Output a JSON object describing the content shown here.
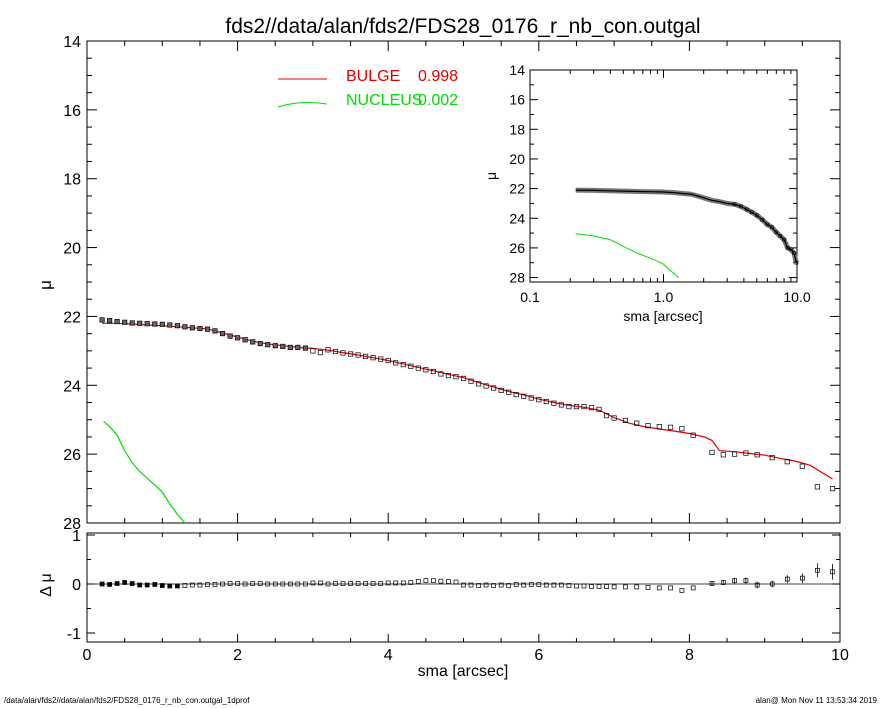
{
  "title": "fds2//data/alan/fds2/FDS28_0176_r_nb_con.outgal",
  "footer": {
    "left": "/data/alan/fds2//data/alan/fds2/FDS28_0176_r_nb_con.outgal_1dprof",
    "right": "alan@  Mon Nov 11 13:53:34 2019"
  },
  "colors": {
    "bulge": "#e00000",
    "nucleus": "#00dd00",
    "data": "#000000",
    "background": "#ffffff"
  },
  "chart_data": [
    {
      "type": "line",
      "panel": "main",
      "title": "fds2//data/alan/fds2/FDS28_0176_r_nb_con.outgal",
      "xlabel": "",
      "ylabel": "μ",
      "xlim": [
        0,
        10
      ],
      "ylim": [
        28,
        14
      ],
      "y_reversed": true,
      "x_ticks": [
        0,
        2,
        4,
        6,
        8,
        10
      ],
      "y_ticks": [
        "14",
        "16",
        "18",
        "20",
        "22",
        "24",
        "26",
        "28"
      ],
      "legend_position": "top-center",
      "legend": [
        {
          "label": "BULGE",
          "value": "0.998",
          "color": "#e00000"
        },
        {
          "label": "NUCLEUS",
          "value": "0.002",
          "color": "#00dd00"
        }
      ],
      "series": [
        {
          "name": "data",
          "style": "squares",
          "x": [
            0.2,
            0.3,
            0.4,
            0.5,
            0.6,
            0.7,
            0.8,
            0.9,
            1.0,
            1.1,
            1.2,
            1.3,
            1.4,
            1.5,
            1.6,
            1.7,
            1.8,
            1.9,
            2.0,
            2.1,
            2.2,
            2.3,
            2.4,
            2.5,
            2.6,
            2.7,
            2.8,
            2.9,
            3.0,
            3.1,
            3.2,
            3.3,
            3.4,
            3.5,
            3.6,
            3.7,
            3.8,
            3.9,
            4.0,
            4.1,
            4.2,
            4.3,
            4.4,
            4.5,
            4.6,
            4.7,
            4.8,
            4.9,
            5.0,
            5.1,
            5.2,
            5.3,
            5.4,
            5.5,
            5.6,
            5.7,
            5.8,
            5.9,
            6.0,
            6.1,
            6.2,
            6.3,
            6.4,
            6.5,
            6.6,
            6.7,
            6.8,
            6.9,
            7.0,
            7.15,
            7.3,
            7.45,
            7.6,
            7.75,
            7.9,
            8.05,
            8.3,
            8.45,
            8.6,
            8.75,
            8.9,
            9.1,
            9.3,
            9.5,
            9.7,
            9.9
          ],
          "y": [
            22.1,
            22.12,
            22.15,
            22.17,
            22.19,
            22.2,
            22.21,
            22.22,
            22.23,
            22.25,
            22.27,
            22.3,
            22.33,
            22.35,
            22.37,
            22.42,
            22.5,
            22.57,
            22.62,
            22.68,
            22.74,
            22.79,
            22.82,
            22.85,
            22.87,
            22.9,
            22.9,
            22.92,
            23.0,
            23.05,
            22.97,
            23.02,
            23.06,
            23.09,
            23.12,
            23.16,
            23.2,
            23.24,
            23.28,
            23.35,
            23.4,
            23.45,
            23.5,
            23.55,
            23.6,
            23.67,
            23.72,
            23.75,
            23.8,
            23.88,
            23.96,
            24.02,
            24.08,
            24.15,
            24.2,
            24.27,
            24.32,
            24.37,
            24.42,
            24.47,
            24.52,
            24.57,
            24.62,
            24.62,
            24.62,
            24.65,
            24.7,
            24.88,
            24.95,
            25.02,
            25.1,
            25.17,
            25.2,
            25.22,
            25.26,
            25.45,
            25.95,
            26.02,
            26.0,
            25.97,
            26.02,
            26.1,
            26.22,
            26.35,
            26.95,
            27.0
          ]
        },
        {
          "name": "BULGE",
          "style": "line",
          "x": [
            0.2,
            0.4,
            0.6,
            0.8,
            1.0,
            1.2,
            1.4,
            1.6,
            1.8,
            2.0,
            2.2,
            2.4,
            2.6,
            2.8,
            3.0,
            3.2,
            3.4,
            3.6,
            3.8,
            4.0,
            4.2,
            4.4,
            4.6,
            4.8,
            5.0,
            5.2,
            5.4,
            5.6,
            5.8,
            6.0,
            6.2,
            6.4,
            6.6,
            6.8,
            7.0,
            7.2,
            7.4,
            7.6,
            7.8,
            8.0,
            8.2,
            8.3,
            8.4,
            8.6,
            8.8,
            9.0,
            9.2,
            9.4,
            9.6,
            9.9
          ],
          "y": [
            22.2,
            22.2,
            22.22,
            22.25,
            22.27,
            22.3,
            22.33,
            22.36,
            22.48,
            22.6,
            22.72,
            22.8,
            22.85,
            22.9,
            22.93,
            22.98,
            23.05,
            23.12,
            23.2,
            23.28,
            23.38,
            23.48,
            23.58,
            23.68,
            23.78,
            23.92,
            24.05,
            24.18,
            24.28,
            24.4,
            24.5,
            24.58,
            24.64,
            24.72,
            24.94,
            25.1,
            25.2,
            25.27,
            25.33,
            25.4,
            25.5,
            25.6,
            25.9,
            25.93,
            25.98,
            26.03,
            26.12,
            26.2,
            26.32,
            26.72
          ]
        },
        {
          "name": "NUCLEUS",
          "style": "line",
          "x": [
            0.22,
            0.3,
            0.4,
            0.5,
            0.6,
            0.7,
            0.8,
            0.9,
            1.0,
            1.1,
            1.2,
            1.3
          ],
          "y": [
            25.05,
            25.2,
            25.45,
            25.9,
            26.25,
            26.5,
            26.7,
            26.9,
            27.1,
            27.45,
            27.75,
            28.0
          ]
        }
      ]
    },
    {
      "type": "scatter",
      "panel": "residual",
      "xlabel": "sma [arcsec]",
      "ylabel": "Δ μ",
      "xlim": [
        0,
        10
      ],
      "ylim": [
        -1,
        1
      ],
      "x_ticks": [
        "0",
        "2",
        "4",
        "6",
        "8",
        "10"
      ],
      "y_ticks": [
        "1",
        "0",
        "-1"
      ],
      "series": [
        {
          "name": "residual",
          "x": [
            0.2,
            0.3,
            0.4,
            0.5,
            0.6,
            0.7,
            0.8,
            0.9,
            1.0,
            1.1,
            1.2,
            1.3,
            1.4,
            1.5,
            1.6,
            1.7,
            1.8,
            1.9,
            2.0,
            2.1,
            2.2,
            2.3,
            2.4,
            2.5,
            2.6,
            2.7,
            2.8,
            2.9,
            3.0,
            3.1,
            3.2,
            3.3,
            3.4,
            3.5,
            3.6,
            3.7,
            3.8,
            3.9,
            4.0,
            4.1,
            4.2,
            4.3,
            4.4,
            4.5,
            4.6,
            4.7,
            4.8,
            4.9,
            5.0,
            5.1,
            5.2,
            5.3,
            5.4,
            5.5,
            5.6,
            5.7,
            5.8,
            5.9,
            6.0,
            6.1,
            6.2,
            6.3,
            6.4,
            6.5,
            6.6,
            6.7,
            6.8,
            6.9,
            7.0,
            7.15,
            7.3,
            7.45,
            7.6,
            7.75,
            7.9,
            8.05,
            8.3,
            8.45,
            8.6,
            8.75,
            8.9,
            9.1,
            9.3,
            9.5,
            9.7,
            9.9
          ],
          "y": [
            0.0,
            -0.01,
            0.01,
            0.03,
            0.01,
            -0.02,
            -0.02,
            -0.01,
            -0.03,
            -0.04,
            -0.04,
            -0.03,
            -0.02,
            -0.02,
            -0.01,
            -0.01,
            0.0,
            0.01,
            0.01,
            0.0,
            0.01,
            0.01,
            0.0,
            0.0,
            0.0,
            0.0,
            0.0,
            0.0,
            0.02,
            0.02,
            0.0,
            0.01,
            0.01,
            0.01,
            0.01,
            0.01,
            0.01,
            0.01,
            0.02,
            0.02,
            0.02,
            0.03,
            0.05,
            0.07,
            0.07,
            0.06,
            0.05,
            0.04,
            -0.02,
            -0.02,
            -0.03,
            -0.02,
            -0.03,
            -0.02,
            -0.03,
            -0.01,
            -0.02,
            -0.01,
            -0.01,
            -0.02,
            -0.02,
            -0.02,
            -0.03,
            -0.04,
            -0.04,
            -0.05,
            -0.05,
            -0.05,
            -0.06,
            -0.06,
            -0.06,
            -0.07,
            -0.08,
            -0.08,
            -0.13,
            -0.08,
            0.01,
            0.03,
            0.07,
            0.07,
            -0.02,
            0.0,
            0.1,
            0.12,
            0.28,
            0.25
          ],
          "yerr": [
            0.02,
            0.02,
            0.02,
            0.02,
            0.02,
            0.02,
            0.02,
            0.02,
            0.02,
            0.02,
            0.02,
            0.02,
            0.02,
            0.02,
            0.02,
            0.02,
            0.02,
            0.02,
            0.02,
            0.02,
            0.02,
            0.02,
            0.02,
            0.02,
            0.02,
            0.02,
            0.02,
            0.02,
            0.02,
            0.02,
            0.02,
            0.02,
            0.02,
            0.02,
            0.02,
            0.02,
            0.02,
            0.02,
            0.02,
            0.02,
            0.02,
            0.02,
            0.02,
            0.02,
            0.02,
            0.02,
            0.02,
            0.02,
            0.02,
            0.02,
            0.02,
            0.02,
            0.02,
            0.02,
            0.02,
            0.02,
            0.02,
            0.02,
            0.02,
            0.02,
            0.02,
            0.02,
            0.02,
            0.02,
            0.02,
            0.02,
            0.02,
            0.02,
            0.02,
            0.03,
            0.03,
            0.03,
            0.03,
            0.03,
            0.04,
            0.04,
            0.05,
            0.05,
            0.06,
            0.06,
            0.07,
            0.07,
            0.08,
            0.1,
            0.14,
            0.16
          ]
        }
      ]
    },
    {
      "type": "line",
      "panel": "inset",
      "xlabel": "sma [arcsec]",
      "ylabel": "μ",
      "x_scale": "log",
      "xlim": [
        0.1,
        10
      ],
      "ylim": [
        28.3,
        14
      ],
      "y_reversed": true,
      "x_ticks": [
        "0.1",
        "1.0",
        "10.0"
      ],
      "y_ticks": [
        "14",
        "16",
        "18",
        "20",
        "22",
        "24",
        "26",
        "28"
      ],
      "series": [
        {
          "name": "data",
          "x": [
            0.22,
            0.3,
            0.4,
            0.5,
            0.6,
            0.7,
            0.8,
            0.9,
            1.0,
            1.2,
            1.4,
            1.6,
            1.8,
            2.0,
            2.3,
            2.6,
            3.0,
            3.4,
            3.8,
            4.2,
            4.6,
            5.0,
            5.5,
            6.0,
            6.5,
            7.0,
            7.5,
            8.0,
            8.5,
            9.0,
            9.5,
            9.9
          ],
          "y": [
            22.1,
            22.12,
            22.15,
            22.17,
            22.19,
            22.2,
            22.21,
            22.22,
            22.23,
            22.27,
            22.33,
            22.37,
            22.5,
            22.62,
            22.79,
            22.87,
            23.0,
            23.06,
            23.2,
            23.4,
            23.6,
            23.8,
            24.1,
            24.42,
            24.62,
            24.95,
            25.2,
            25.45,
            26.0,
            26.1,
            26.35,
            27.0
          ]
        },
        {
          "name": "NUCLEUS",
          "x": [
            0.22,
            0.3,
            0.4,
            0.5,
            0.6,
            0.7,
            0.8,
            0.9,
            1.0,
            1.1,
            1.2,
            1.3
          ],
          "y": [
            25.05,
            25.2,
            25.45,
            25.9,
            26.25,
            26.5,
            26.7,
            26.9,
            27.1,
            27.45,
            27.75,
            28.0
          ]
        }
      ]
    }
  ]
}
